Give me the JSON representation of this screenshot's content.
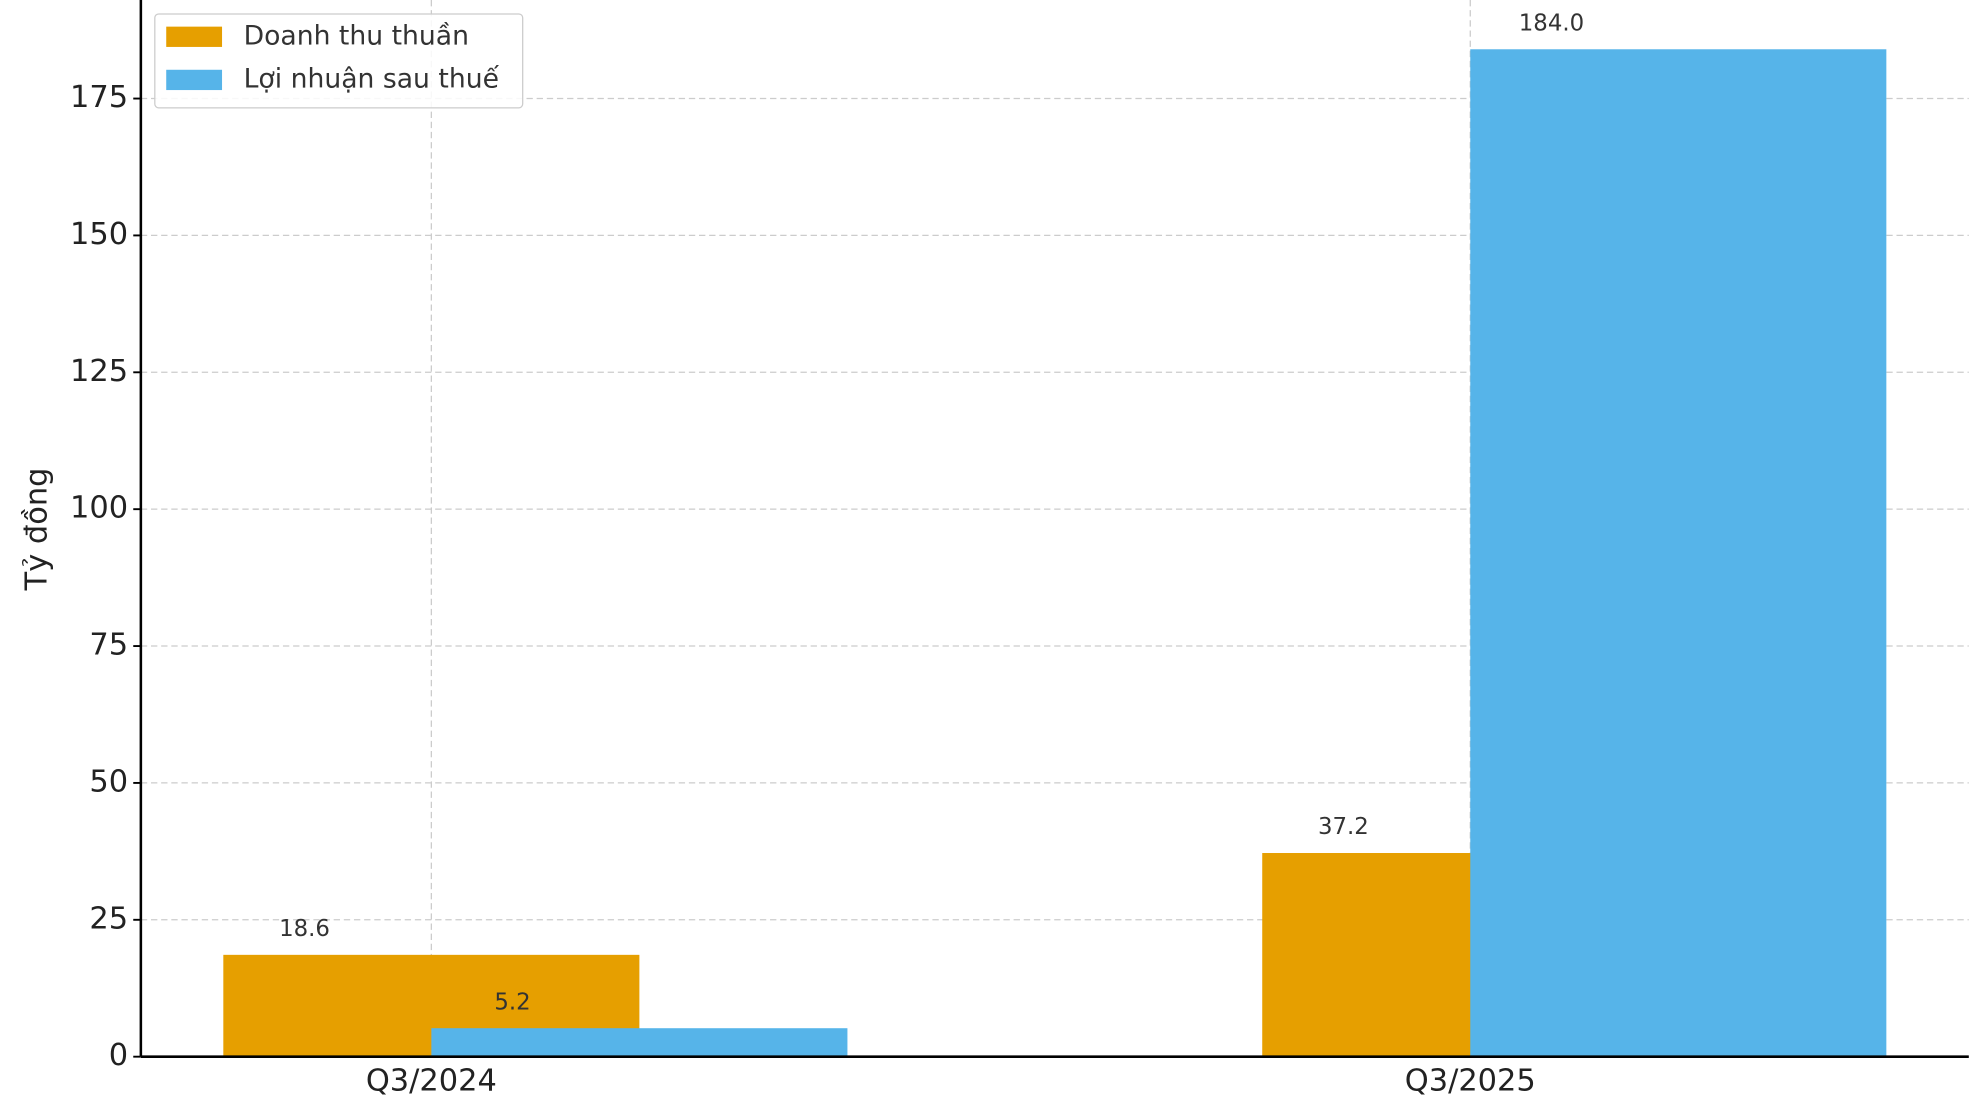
{
  "chart_data": {
    "type": "bar",
    "y_label": "Tỷ đồng",
    "categories": [
      "Q3/2024",
      "Q3/2025"
    ],
    "series": [
      {
        "name": "Doanh thu thuần",
        "color": "#E69F00",
        "values": [
          18.6,
          37.2
        ],
        "value_labels": [
          "18.6",
          "37.2"
        ]
      },
      {
        "name": "Lợi nhuận sau thuế",
        "color": "#56B4E9",
        "values": [
          5.2,
          184.0
        ],
        "value_labels": [
          "5.2",
          "184.0"
        ]
      }
    ],
    "ylim": [
      0,
      193
    ],
    "yticks": [
      0,
      25,
      50,
      75,
      100,
      125,
      150,
      175
    ],
    "grid": true,
    "legend": "upper left"
  }
}
